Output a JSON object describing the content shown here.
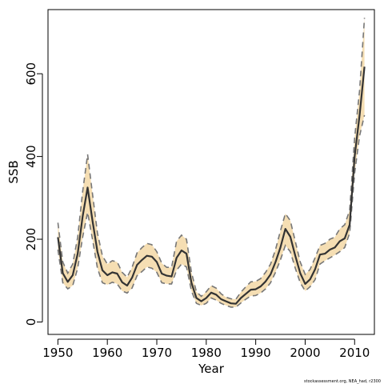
{
  "chart_data": {
    "type": "line",
    "xlabel": "Year",
    "ylabel": "SSB",
    "caption": "stockassessment.org, NEA_had, r2300",
    "xlim": [
      1948,
      2014
    ],
    "ylim": [
      -30,
      755
    ],
    "xticks": [
      1950,
      1960,
      1970,
      1980,
      1990,
      2000,
      2010
    ],
    "yticks": [
      0,
      200,
      400,
      600
    ],
    "colors": {
      "band": "#F5DEB3",
      "line": "#333333",
      "ci": "#777777",
      "frame": "#000000"
    },
    "series": [
      {
        "x": [
          1950,
          1951,
          1952,
          1953,
          1954,
          1955,
          1956,
          1957,
          1958,
          1959,
          1960,
          1961,
          1962,
          1963,
          1964,
          1965,
          1966,
          1967,
          1968,
          1969,
          1970,
          1971,
          1972,
          1973,
          1974,
          1975,
          1976,
          1977,
          1978,
          1979,
          1980,
          1981,
          1982,
          1983,
          1984,
          1985,
          1986,
          1987,
          1988,
          1989,
          1990,
          1991,
          1992,
          1993,
          1994,
          1995,
          1996,
          1997,
          1998,
          1999,
          2000,
          2001,
          2002,
          2003,
          2004,
          2005,
          2006,
          2007,
          2008,
          2009,
          2010,
          2011,
          2012
        ],
        "values": [
          205,
          118,
          97,
          113,
          165,
          255,
          325,
          245,
          170,
          125,
          113,
          120,
          117,
          96,
          88,
          107,
          138,
          150,
          160,
          158,
          145,
          117,
          112,
          110,
          155,
          173,
          165,
          95,
          58,
          50,
          58,
          71,
          66,
          55,
          50,
          45,
          44,
          58,
          68,
          78,
          79,
          86,
          98,
          115,
          145,
          180,
          225,
          206,
          160,
          118,
          92,
          103,
          127,
          163,
          165,
          175,
          180,
          195,
          202,
          235,
          400,
          500,
          617
        ]
      }
    ],
    "ci_lower": [
      175,
      95,
      80,
      88,
      130,
      205,
      265,
      200,
      130,
      95,
      90,
      96,
      92,
      75,
      70,
      82,
      112,
      122,
      133,
      130,
      120,
      95,
      92,
      92,
      125,
      140,
      133,
      75,
      45,
      40,
      45,
      58,
      53,
      45,
      40,
      36,
      36,
      46,
      55,
      63,
      64,
      70,
      80,
      95,
      120,
      150,
      185,
      170,
      130,
      95,
      75,
      85,
      102,
      140,
      148,
      155,
      162,
      170,
      180,
      215,
      360,
      450,
      500
    ],
    "ci_upper": [
      240,
      145,
      118,
      140,
      205,
      315,
      405,
      310,
      215,
      160,
      140,
      148,
      145,
      120,
      108,
      132,
      167,
      180,
      190,
      187,
      170,
      142,
      132,
      132,
      195,
      210,
      200,
      120,
      73,
      62,
      73,
      88,
      82,
      68,
      60,
      56,
      55,
      72,
      85,
      97,
      98,
      105,
      120,
      140,
      175,
      220,
      262,
      245,
      195,
      145,
      115,
      127,
      155,
      185,
      190,
      200,
      205,
      225,
      235,
      270,
      445,
      560,
      735
    ]
  }
}
